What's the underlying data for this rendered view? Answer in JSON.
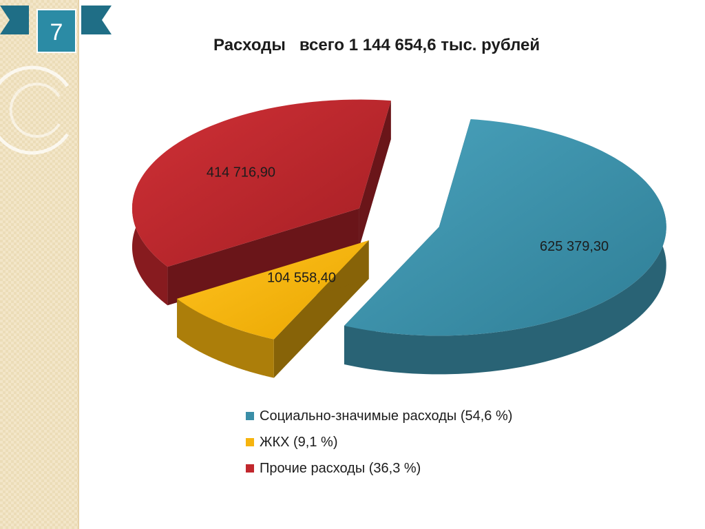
{
  "slide": {
    "number": "7"
  },
  "title": "Расходы   всего 1 144 654,6 тыс. рублей",
  "colors": {
    "side_panel": "#f3e6c8",
    "badge": "#2b8ba5",
    "social": "#3a8ea7",
    "housing": "#f6b40e",
    "other": "#c1272d"
  },
  "chart_data": {
    "type": "pie",
    "style": "3d-exploded",
    "title": "Расходы   всего 1 144 654,6 тыс. рублей",
    "legend_position": "bottom",
    "series": [
      {
        "name": "Социально-значимые расходы (54,6 %)",
        "value": 625379.3,
        "label": "625 379,30",
        "color": "#3a8ea7"
      },
      {
        "name": "ЖКХ (9,1 %)",
        "value": 104558.4,
        "label": "104 558,40",
        "color": "#f6b40e"
      },
      {
        "name": "Прочие расходы (36,3 %)",
        "value": 414716.9,
        "label": "414 716,90",
        "color": "#c1272d"
      }
    ]
  }
}
